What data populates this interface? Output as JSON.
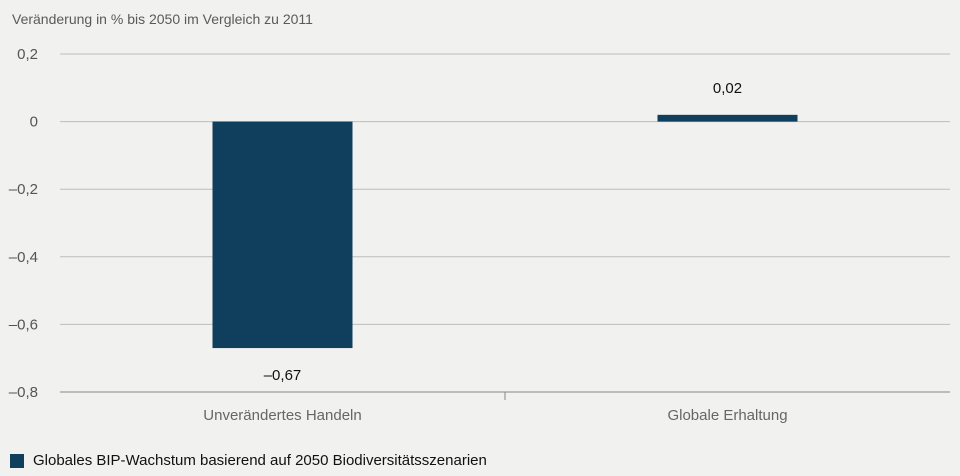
{
  "chart_data": {
    "type": "bar",
    "subtitle": "Veränderung in % bis 2050 im Vergleich zu 2011",
    "categories": [
      "Unverändertes Handeln",
      "Globale Erhaltung"
    ],
    "series": [
      {
        "name": "Globales BIP-Wachstum basierend auf 2050 Biodiversitätsszenarien",
        "values": [
          -0.67,
          0.02
        ],
        "value_labels": [
          "–0,67",
          "0,02"
        ],
        "color": "#0f3f5c"
      }
    ],
    "ylim": [
      -0.8,
      0.2
    ],
    "yticks": [
      0.2,
      0,
      -0.2,
      -0.4,
      -0.6,
      -0.8
    ],
    "ytick_labels": [
      "0,2",
      "0",
      "–0,2",
      "–0,4",
      "–0,6",
      "–0,8"
    ],
    "grid": true,
    "legend_position": "bottom-left"
  }
}
